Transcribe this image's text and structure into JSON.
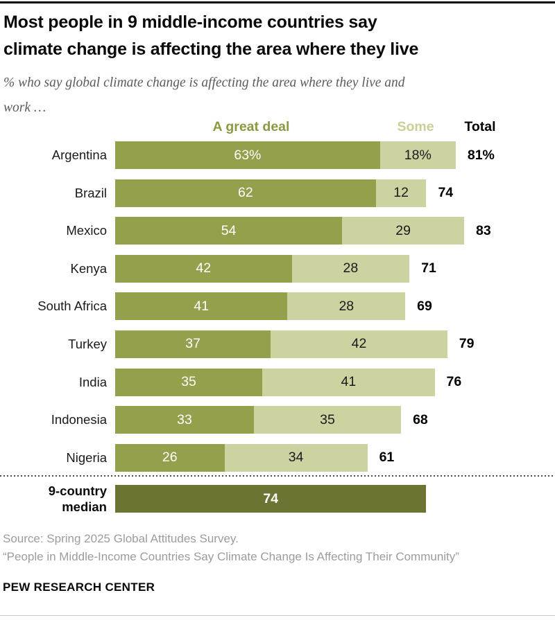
{
  "header": {
    "title_line1": "Most people in 9 middle-income countries say",
    "title_line2": "climate change is affecting the area where they live",
    "subtitle_line1": "% who say global climate change is affecting the area where they live and",
    "subtitle_line2": "work …"
  },
  "legend": {
    "great_deal": "A great deal",
    "some": "Some",
    "total": "Total"
  },
  "chart_data": {
    "type": "bar",
    "stacked": true,
    "orientation": "horizontal",
    "unit": "%",
    "xlim": [
      0,
      100
    ],
    "grid": false,
    "categories": [
      "Argentina",
      "Brazil",
      "Mexico",
      "Kenya",
      "South Africa",
      "Turkey",
      "India",
      "Indonesia",
      "Nigeria"
    ],
    "series": [
      {
        "name": "A great deal",
        "color": "#94a04b",
        "values": [
          63,
          62,
          54,
          42,
          41,
          37,
          35,
          33,
          26
        ],
        "labels": [
          "63%",
          "62",
          "54",
          "42",
          "41",
          "37",
          "35",
          "33",
          "26"
        ]
      },
      {
        "name": "Some",
        "color": "#cdd3a0",
        "values": [
          18,
          12,
          29,
          28,
          28,
          42,
          41,
          35,
          34
        ],
        "labels": [
          "18%",
          "12",
          "29",
          "28",
          "28",
          "42",
          "41",
          "35",
          "34"
        ]
      }
    ],
    "totals": {
      "name": "Total",
      "values": [
        81,
        74,
        83,
        71,
        69,
        79,
        76,
        68,
        61
      ],
      "labels": [
        "81%",
        "74",
        "83",
        "71",
        "69",
        "79",
        "76",
        "68",
        "61"
      ]
    },
    "median_row": {
      "label_line1": "9-country",
      "label_line2": "median",
      "value": 74,
      "label": "74",
      "color": "#6d7433"
    }
  },
  "footer": {
    "source": "Source: Spring 2025 Global Attitudes Survey.",
    "quote": "“People in Middle-Income Countries Say Climate Change Is Affecting Their Community”",
    "brand": "PEW RESEARCH CENTER"
  },
  "colors": {
    "great_deal": "#94a04b",
    "some": "#cdd3a0",
    "median": "#6d7433",
    "great_deal_header_text": "#8a9a40",
    "some_header_text": "#c9cf96",
    "title_text": "#0a0a0a",
    "subtitle_text": "#5b5b5d",
    "source_text": "#9c9c9c"
  }
}
